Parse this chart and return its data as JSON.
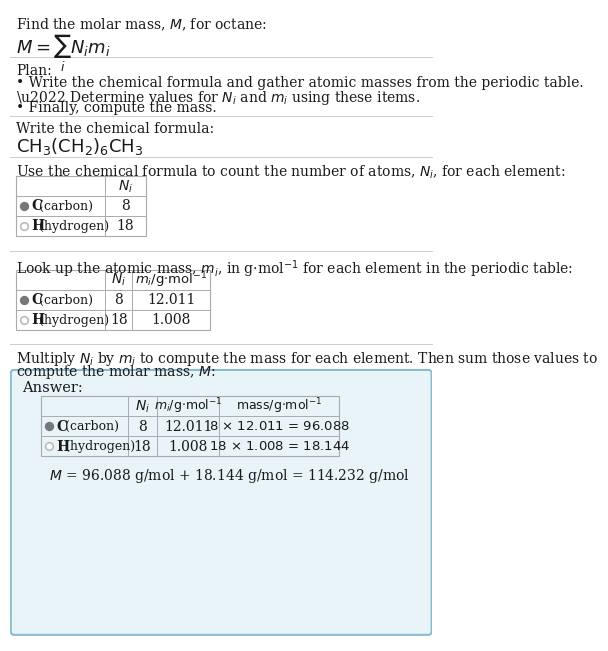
{
  "title": "Find the molar mass, $M$, for octane:",
  "formula": "$M = \\sum_i N_i m_i$",
  "bg_color": "#ffffff",
  "text_color": "#1a1a1a",
  "section1_title": "Plan:",
  "section1_lines": [
    "\\u2022 Write the chemical formula and gather atomic masses from the periodic table.",
    "\\u2022 Determine values for $N_i$ and $m_i$ using these items.",
    "\\u2022 Finally, compute the mass."
  ],
  "section2_title": "Write the chemical formula:",
  "section3_title": "Use the chemical formula to count the number of atoms, $N_i$, for each element:",
  "section4_title": "Look up the atomic mass, $m_i$, in g$\\cdot$mol$^{-1}$ for each element in the periodic table:",
  "section5_line1": "Multiply $N_i$ by $m_i$ to compute the mass for each element. Then sum those values to",
  "section5_line2": "compute the molar mass, $M$:",
  "answer_label": "Answer:",
  "final_answer": "$M$ = 96.088 g/mol + 18.144 g/mol = 114.232 g/mol",
  "carbon_dot_color": "#777777",
  "hydrogen_dot_color": "#bbbbbb",
  "table_line_color": "#aaaaaa",
  "sep_line_color": "#cccccc",
  "answer_bg": "#e8f4f8",
  "answer_border": "#88bbcc"
}
